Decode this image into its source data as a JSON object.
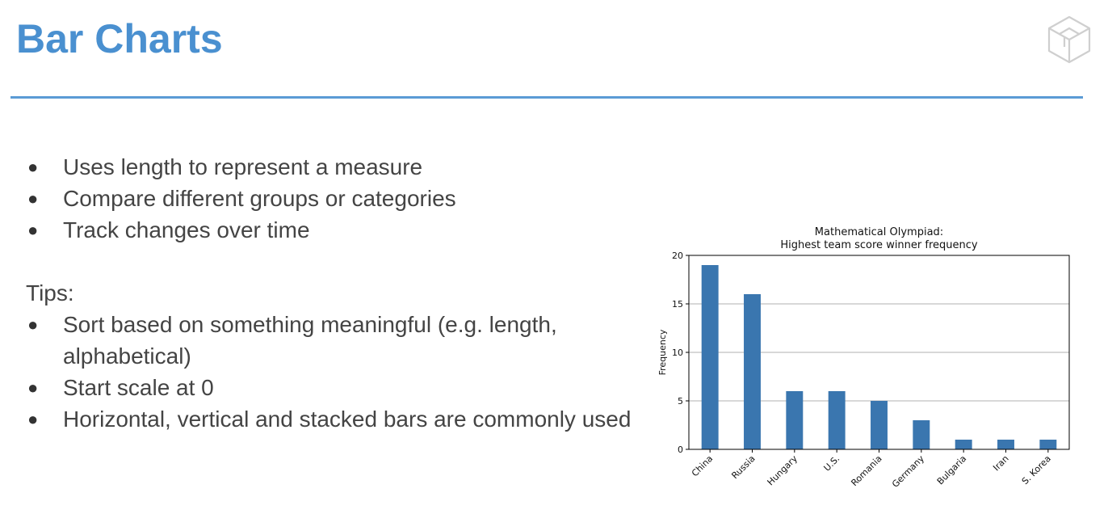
{
  "slide": {
    "title": "Bar Charts",
    "bullets": [
      "Uses length to represent a measure",
      "Compare different groups or categories",
      "Track changes over time"
    ],
    "tips_label": "Tips:",
    "tips": [
      "Sort based on something meaningful (e.g. length, alphabetical)",
      "Start scale at 0",
      "Horizontal, vertical and stacked bars are commonly used"
    ],
    "accent_color": "#4a90d0",
    "logo_icon": "cube-logo-icon"
  },
  "chart_data": {
    "type": "bar",
    "title_lines": [
      "Mathematical Olympiad:",
      "Highest team score winner frequency"
    ],
    "xlabel": "",
    "ylabel": "Frequency",
    "categories": [
      "China",
      "Russia",
      "Hungary",
      "U.S.",
      "Romania",
      "Germany",
      "Bulgaria",
      "Iran",
      "S. Korea"
    ],
    "values": [
      19,
      16,
      6,
      6,
      5,
      3,
      1,
      1,
      1
    ],
    "ylim": [
      0,
      20
    ],
    "yticks": [
      0,
      5,
      10,
      15,
      20
    ],
    "grid": "horizontal",
    "bar_color": "#3a76af",
    "grid_color": "#b0b0b0"
  }
}
